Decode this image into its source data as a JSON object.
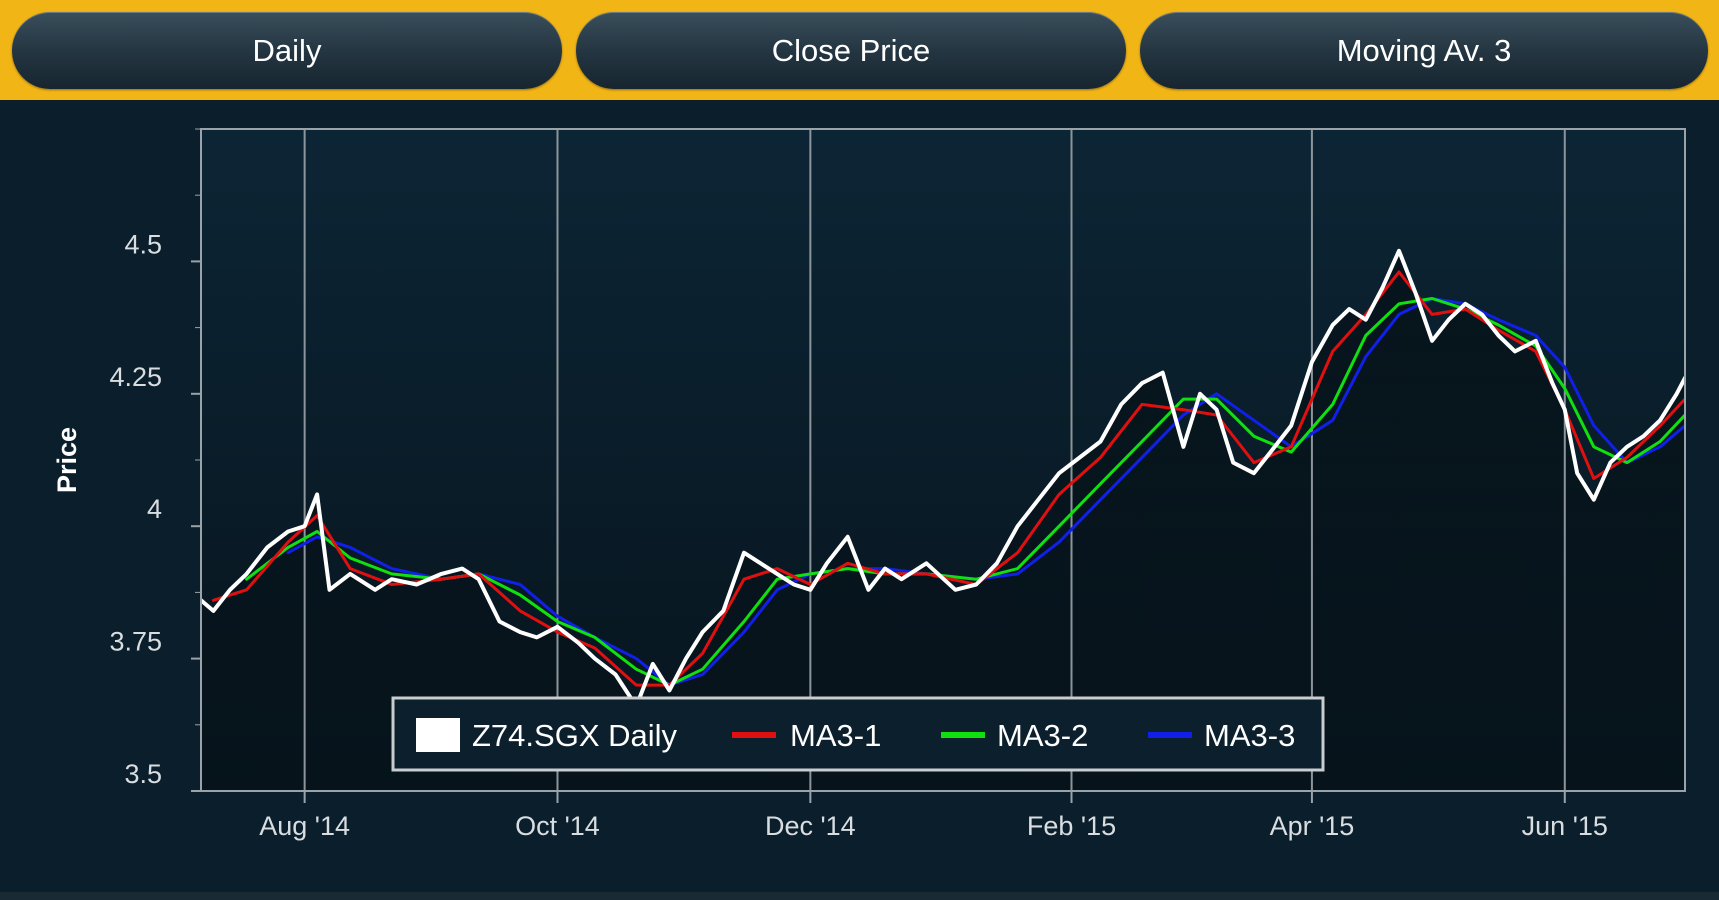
{
  "toolbar": {
    "interval_label": "Daily",
    "price_label": "Close Price",
    "indicator_label": "Moving Av. 3"
  },
  "colors": {
    "background": "#0a1e2c",
    "toolbar": "#f2b516",
    "series_price": "#ffffff",
    "series_ma1": "#e01010",
    "series_ma2": "#10e010",
    "series_ma3": "#1020e8"
  },
  "chart_data": {
    "type": "line",
    "title": "",
    "xlabel": "",
    "ylabel": "Price",
    "ylim": [
      3.5,
      4.75
    ],
    "yticks": [
      {
        "value": 3.5,
        "label": "3.5"
      },
      {
        "value": 3.75,
        "label": "3.75"
      },
      {
        "value": 4.0,
        "label": "4"
      },
      {
        "value": 4.25,
        "label": "4.25"
      },
      {
        "value": 4.5,
        "label": "4.5"
      }
    ],
    "xlim": [
      "2014-07-07",
      "2015-06-30"
    ],
    "xticks": [
      {
        "date": "2014-08-01",
        "label": "Aug '14"
      },
      {
        "date": "2014-10-01",
        "label": "Oct '14"
      },
      {
        "date": "2014-12-01",
        "label": "Dec '14"
      },
      {
        "date": "2015-02-02",
        "label": "Feb '15"
      },
      {
        "date": "2015-04-01",
        "label": "Apr '15"
      },
      {
        "date": "2015-06-01",
        "label": "Jun '15"
      }
    ],
    "grid": "vertical lines at x ticks",
    "legend_position": "bottom-center",
    "legend": [
      "Z74.SGX Daily",
      "MA3-1",
      "MA3-2",
      "MA3-3"
    ],
    "series": [
      {
        "name": "Z74.SGX Daily",
        "color": "#ffffff",
        "x": [
          "2014-07-07",
          "2014-07-10",
          "2014-07-14",
          "2014-07-18",
          "2014-07-23",
          "2014-07-28",
          "2014-08-01",
          "2014-08-04",
          "2014-08-07",
          "2014-08-12",
          "2014-08-18",
          "2014-08-22",
          "2014-08-28",
          "2014-09-03",
          "2014-09-08",
          "2014-09-12",
          "2014-09-17",
          "2014-09-22",
          "2014-09-26",
          "2014-10-01",
          "2014-10-06",
          "2014-10-10",
          "2014-10-15",
          "2014-10-20",
          "2014-10-24",
          "2014-10-28",
          "2014-11-01",
          "2014-11-05",
          "2014-11-10",
          "2014-11-15",
          "2014-11-19",
          "2014-11-23",
          "2014-11-27",
          "2014-12-01",
          "2014-12-05",
          "2014-12-10",
          "2014-12-15",
          "2014-12-19",
          "2014-12-23",
          "2014-12-29",
          "2015-01-05",
          "2015-01-10",
          "2015-01-15",
          "2015-01-20",
          "2015-01-25",
          "2015-01-30",
          "2015-02-04",
          "2015-02-09",
          "2015-02-14",
          "2015-02-19",
          "2015-02-24",
          "2015-03-01",
          "2015-03-05",
          "2015-03-09",
          "2015-03-13",
          "2015-03-18",
          "2015-03-22",
          "2015-03-27",
          "2015-04-01",
          "2015-04-06",
          "2015-04-10",
          "2015-04-14",
          "2015-04-18",
          "2015-04-22",
          "2015-04-26",
          "2015-04-30",
          "2015-05-04",
          "2015-05-08",
          "2015-05-12",
          "2015-05-16",
          "2015-05-20",
          "2015-05-25",
          "2015-05-29",
          "2015-06-01",
          "2015-06-04",
          "2015-06-08",
          "2015-06-12",
          "2015-06-16",
          "2015-06-20",
          "2015-06-24",
          "2015-06-28",
          "2015-06-30"
        ],
        "values": [
          3.86,
          3.84,
          3.88,
          3.91,
          3.96,
          3.99,
          4.0,
          4.06,
          3.88,
          3.91,
          3.88,
          3.9,
          3.89,
          3.91,
          3.92,
          3.9,
          3.82,
          3.8,
          3.79,
          3.81,
          3.78,
          3.75,
          3.72,
          3.66,
          3.74,
          3.69,
          3.75,
          3.8,
          3.84,
          3.95,
          3.93,
          3.91,
          3.89,
          3.88,
          3.93,
          3.98,
          3.88,
          3.92,
          3.9,
          3.93,
          3.88,
          3.89,
          3.93,
          4.0,
          4.05,
          4.1,
          4.13,
          4.16,
          4.23,
          4.27,
          4.29,
          4.15,
          4.25,
          4.22,
          4.12,
          4.1,
          4.14,
          4.19,
          4.31,
          4.38,
          4.41,
          4.39,
          4.45,
          4.52,
          4.44,
          4.35,
          4.39,
          4.42,
          4.4,
          4.36,
          4.33,
          4.35,
          4.27,
          4.22,
          4.1,
          4.05,
          4.12,
          4.15,
          4.17,
          4.2,
          4.25,
          4.28
        ]
      },
      {
        "name": "MA3-1",
        "color": "#e01010",
        "x": [
          "2014-07-10",
          "2014-07-18",
          "2014-07-28",
          "2014-08-04",
          "2014-08-12",
          "2014-08-22",
          "2014-09-03",
          "2014-09-12",
          "2014-09-22",
          "2014-10-01",
          "2014-10-10",
          "2014-10-20",
          "2014-10-28",
          "2014-11-05",
          "2014-11-15",
          "2014-11-23",
          "2014-12-01",
          "2014-12-10",
          "2014-12-19",
          "2014-12-29",
          "2015-01-10",
          "2015-01-20",
          "2015-01-30",
          "2015-02-09",
          "2015-02-19",
          "2015-03-01",
          "2015-03-09",
          "2015-03-18",
          "2015-03-27",
          "2015-04-06",
          "2015-04-14",
          "2015-04-22",
          "2015-04-30",
          "2015-05-08",
          "2015-05-16",
          "2015-05-25",
          "2015-06-01",
          "2015-06-08",
          "2015-06-16",
          "2015-06-24",
          "2015-06-30"
        ],
        "values": [
          3.86,
          3.88,
          3.97,
          4.02,
          3.92,
          3.89,
          3.9,
          3.91,
          3.84,
          3.8,
          3.77,
          3.7,
          3.7,
          3.76,
          3.9,
          3.92,
          3.89,
          3.93,
          3.91,
          3.91,
          3.89,
          3.95,
          4.06,
          4.13,
          4.23,
          4.22,
          4.21,
          4.12,
          4.15,
          4.33,
          4.4,
          4.48,
          4.4,
          4.41,
          4.37,
          4.33,
          4.22,
          4.09,
          4.13,
          4.19,
          4.24
        ]
      },
      {
        "name": "MA3-2",
        "color": "#10e010",
        "x": [
          "2014-07-18",
          "2014-07-28",
          "2014-08-04",
          "2014-08-12",
          "2014-08-22",
          "2014-09-03",
          "2014-09-12",
          "2014-09-22",
          "2014-10-01",
          "2014-10-10",
          "2014-10-20",
          "2014-10-28",
          "2014-11-05",
          "2014-11-15",
          "2014-11-23",
          "2014-12-01",
          "2014-12-10",
          "2014-12-19",
          "2014-12-29",
          "2015-01-10",
          "2015-01-20",
          "2015-01-30",
          "2015-02-09",
          "2015-02-19",
          "2015-03-01",
          "2015-03-09",
          "2015-03-18",
          "2015-03-27",
          "2015-04-06",
          "2015-04-14",
          "2015-04-22",
          "2015-04-30",
          "2015-05-08",
          "2015-05-16",
          "2015-05-25",
          "2015-06-01",
          "2015-06-08",
          "2015-06-16",
          "2015-06-24",
          "2015-06-30"
        ],
        "values": [
          3.9,
          3.96,
          3.99,
          3.94,
          3.91,
          3.9,
          3.91,
          3.87,
          3.82,
          3.79,
          3.73,
          3.7,
          3.73,
          3.82,
          3.9,
          3.91,
          3.92,
          3.91,
          3.91,
          3.9,
          3.92,
          4.0,
          4.08,
          4.16,
          4.24,
          4.24,
          4.17,
          4.14,
          4.23,
          4.36,
          4.42,
          4.43,
          4.41,
          4.38,
          4.34,
          4.26,
          4.15,
          4.12,
          4.16,
          4.21
        ]
      },
      {
        "name": "MA3-3",
        "color": "#1020e8",
        "x": [
          "2014-07-28",
          "2014-08-04",
          "2014-08-12",
          "2014-08-22",
          "2014-09-03",
          "2014-09-12",
          "2014-09-22",
          "2014-10-01",
          "2014-10-10",
          "2014-10-20",
          "2014-10-28",
          "2014-11-05",
          "2014-11-15",
          "2014-11-23",
          "2014-12-01",
          "2014-12-10",
          "2014-12-19",
          "2014-12-29",
          "2015-01-10",
          "2015-01-20",
          "2015-01-30",
          "2015-02-09",
          "2015-02-19",
          "2015-03-01",
          "2015-03-09",
          "2015-03-18",
          "2015-03-27",
          "2015-04-06",
          "2015-04-14",
          "2015-04-22",
          "2015-04-30",
          "2015-05-08",
          "2015-05-16",
          "2015-05-25",
          "2015-06-01",
          "2015-06-08",
          "2015-06-16",
          "2015-06-24",
          "2015-06-30"
        ],
        "values": [
          3.95,
          3.98,
          3.96,
          3.92,
          3.9,
          3.91,
          3.89,
          3.83,
          3.79,
          3.75,
          3.7,
          3.72,
          3.8,
          3.88,
          3.91,
          3.92,
          3.92,
          3.91,
          3.9,
          3.91,
          3.97,
          4.05,
          4.13,
          4.21,
          4.25,
          4.2,
          4.15,
          4.2,
          4.32,
          4.4,
          4.43,
          4.42,
          4.39,
          4.36,
          4.3,
          4.19,
          4.12,
          4.15,
          4.19
        ]
      }
    ]
  }
}
